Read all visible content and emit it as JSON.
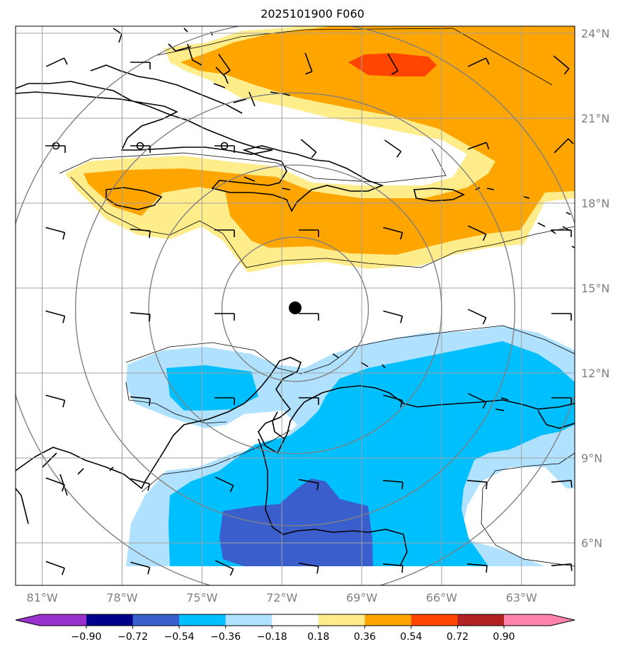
{
  "title": "2025101900 F060",
  "map": {
    "lon_range": [
      -82.0,
      -61.0
    ],
    "lat_range": [
      4.5,
      24.25
    ],
    "grid": true,
    "lon_ticks": [
      {
        "value": -81,
        "label": "81°W"
      },
      {
        "value": -78,
        "label": "78°W"
      },
      {
        "value": -75,
        "label": "75°W"
      },
      {
        "value": -72,
        "label": "72°W"
      },
      {
        "value": -69,
        "label": "69°W"
      },
      {
        "value": -66,
        "label": "66°W"
      },
      {
        "value": -63,
        "label": "63°W"
      }
    ],
    "lat_ticks": [
      {
        "value": 6,
        "label": "6°N"
      },
      {
        "value": 9,
        "label": "9°N"
      },
      {
        "value": 12,
        "label": "12°N"
      },
      {
        "value": 15,
        "label": "15°N"
      },
      {
        "value": 18,
        "label": "18°N"
      },
      {
        "value": 21,
        "label": "21°N"
      },
      {
        "value": 24,
        "label": "24°N"
      }
    ],
    "center_marker": {
      "lon": -71.5,
      "lat": 14.3
    },
    "range_rings_deg": [
      2.75,
      5.5,
      8.25,
      11.0
    ]
  },
  "colorbar": {
    "tick_labels": [
      "−0.90",
      "−0.72",
      "−0.54",
      "−0.36",
      "−0.18",
      "0.18",
      "0.36",
      "0.54",
      "0.72",
      "0.90"
    ],
    "colors": [
      "#9932cc",
      "#00008b",
      "#3a5fcd",
      "#00bfff",
      "#b0e2ff",
      "#ffffff",
      "#ffec8b",
      "#ffa500",
      "#ff4500",
      "#b22222",
      "#ff82ab"
    ]
  },
  "fill_colors": {
    "light_yellow": "#ffec8b",
    "orange": "#ffa500",
    "red_orange": "#ff4500",
    "light_blue": "#b0e2ff",
    "blue": "#00bfff",
    "royal_blue": "#3a5fcd"
  }
}
